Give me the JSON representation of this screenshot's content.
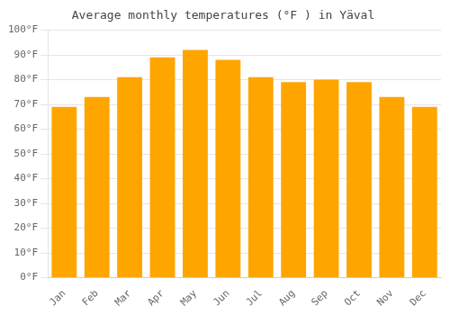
{
  "chart_data": {
    "type": "bar",
    "title": "Average monthly temperatures (°F ) in Yäval",
    "categories": [
      "Jan",
      "Feb",
      "Mar",
      "Apr",
      "May",
      "Jun",
      "Jul",
      "Aug",
      "Sep",
      "Oct",
      "Nov",
      "Dec"
    ],
    "values": [
      69,
      73,
      81,
      89,
      92,
      88,
      81,
      79,
      80,
      79,
      73,
      69
    ],
    "color": "#FFA500",
    "ylim": [
      0,
      100
    ],
    "yticks": [
      {
        "value": 0,
        "label": "0°F"
      },
      {
        "value": 10,
        "label": "10°F"
      },
      {
        "value": 20,
        "label": "20°F"
      },
      {
        "value": 30,
        "label": "30°F"
      },
      {
        "value": 40,
        "label": "40°F"
      },
      {
        "value": 50,
        "label": "50°F"
      },
      {
        "value": 60,
        "label": "60°F"
      },
      {
        "value": 70,
        "label": "70°F"
      },
      {
        "value": 80,
        "label": "80°F"
      },
      {
        "value": 90,
        "label": "90°F"
      },
      {
        "value": 100,
        "label": "100°F"
      }
    ],
    "grid": true
  }
}
